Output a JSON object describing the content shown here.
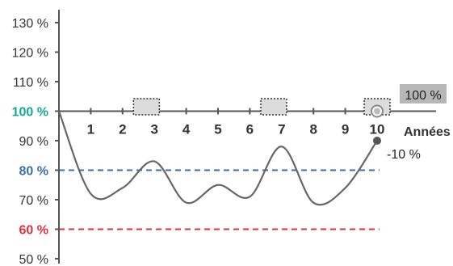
{
  "chart_data": {
    "type": "line",
    "title": "",
    "xlabel": "Années",
    "ylabel": "",
    "xlim": [
      0,
      10
    ],
    "ylim": [
      50,
      130
    ],
    "x_ticks": [
      "1",
      "2",
      "3",
      "4",
      "5",
      "6",
      "7",
      "8",
      "9",
      "10"
    ],
    "y_ticks": [
      {
        "value": 50,
        "label": "50 %"
      },
      {
        "value": 60,
        "label": "60 %",
        "color": "#e0303a"
      },
      {
        "value": 70,
        "label": "70 %"
      },
      {
        "value": 80,
        "label": "80 %",
        "color": "#3a6ea8"
      },
      {
        "value": 90,
        "label": "90 %"
      },
      {
        "value": 100,
        "label": "100 %",
        "color": "#14a79a"
      },
      {
        "value": 110,
        "label": "110 %"
      },
      {
        "value": 120,
        "label": "120 %"
      },
      {
        "value": 130,
        "label": "130 %"
      }
    ],
    "reference_lines": [
      {
        "value": 100,
        "color": "#14a79a",
        "style": "dashed"
      },
      {
        "value": 80,
        "color": "#3a6ea8",
        "style": "dashed"
      },
      {
        "value": 60,
        "color": "#e0303a",
        "style": "dashed"
      }
    ],
    "series": [
      {
        "color": "#666666",
        "x": [
          0,
          1,
          2,
          3,
          4,
          5,
          6,
          7,
          8,
          9,
          10
        ],
        "y": [
          100,
          72,
          74,
          83,
          69,
          75,
          71,
          88,
          69,
          74,
          90
        ]
      }
    ],
    "markers": [
      {
        "x": 2.75,
        "y": 101.5
      },
      {
        "x": 6.75,
        "y": 101.5
      },
      {
        "x": 10,
        "y": 101.5
      }
    ],
    "annotations": {
      "end_value_label": "-10 %",
      "badge_label": "100 %"
    },
    "colors": {
      "axis": "#555555",
      "curve": "#666666",
      "badge_bg": "#b7b7b7",
      "marker_fill": "#dcdcdc",
      "marker_stroke": "#333333",
      "endpoint": "#555555"
    }
  }
}
